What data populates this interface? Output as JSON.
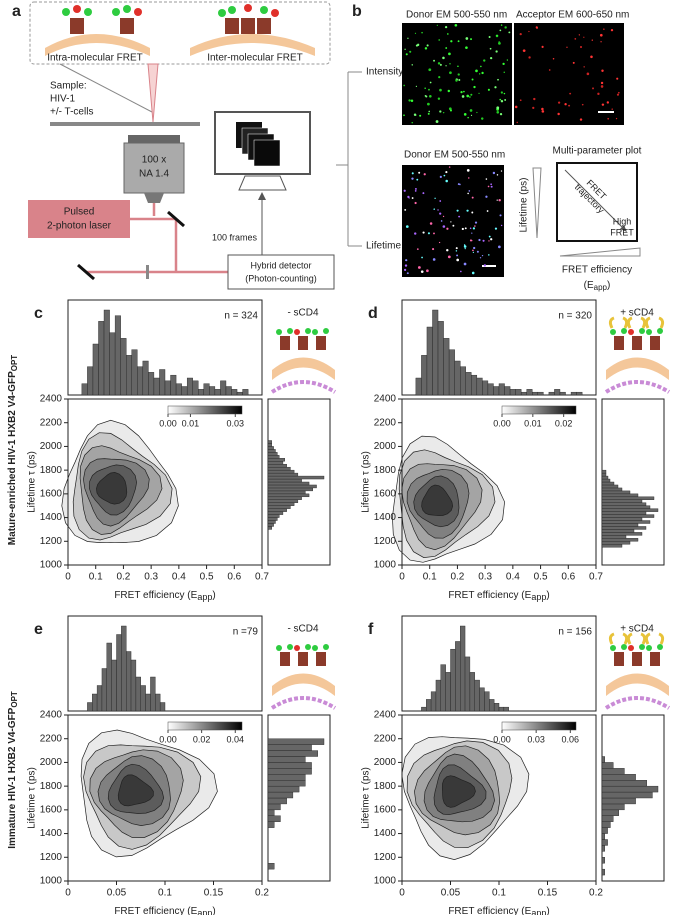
{
  "panel_a": {
    "letter": "a",
    "intra": "Intra-molecular FRET",
    "inter": "Inter-molecular FRET",
    "sample": [
      "Sample:",
      "HIV-1",
      "+/- T-cells"
    ],
    "objective": [
      "100 x",
      "NA 1.4"
    ],
    "laser": [
      "Pulsed",
      "2-photon laser"
    ],
    "frames": "100 frames",
    "detector": [
      "Hybrid detector",
      "(Photon-counting)"
    ]
  },
  "panel_b": {
    "letter": "b",
    "donor_top": "Donor EM 500-550 nm",
    "acceptor": "Acceptor EM 600-650 nm",
    "intensity": "Intensity",
    "lifetime": "Lifetime",
    "donor_bottom": "Donor EM 500-550 nm",
    "plot_title": "Multi-parameter plot",
    "plot_ylabel": "Lifetime (ps)",
    "trajectory": [
      "FRET",
      "trajectory"
    ],
    "high": [
      "High",
      "FRET"
    ],
    "plot_xlabel": {
      "line1": "FRET efficiency",
      "text": "(E",
      "sub": "app",
      "tail": ")"
    }
  },
  "row_labels": [
    {
      "text": "Mature-enriched HIV-1 HXB2 V4-GFP",
      "sub": "OPT"
    },
    {
      "text": "Immature HIV-1 HXB2 V4-GFP",
      "sub": "OPT"
    }
  ],
  "chart_data": [
    {
      "type": "contour",
      "letter": "c",
      "n_label": "n = 324",
      "condition": "- sCD4",
      "xlabel": {
        "text": "FRET efficiency (E",
        "sub": "app",
        "tail": ")"
      },
      "ylabel": "Lifetime τ (ps)",
      "xlim": [
        0,
        0.7
      ],
      "xticks": [
        0,
        0.1,
        0.2,
        0.3,
        0.4,
        0.5,
        0.6,
        0.7
      ],
      "ylim": [
        1000,
        2400
      ],
      "yticks": [
        1000,
        1200,
        1400,
        1600,
        1800,
        2000,
        2200,
        2400
      ],
      "clim": [
        0,
        0.033
      ],
      "colorbar_ticks": [
        {
          "value": 0,
          "label": "0.00"
        },
        {
          "value": 0.01,
          "label": "0.01"
        },
        {
          "value": 0.03,
          "label": "0.03"
        }
      ],
      "top_histogram": {
        "bins": [
          0.05,
          0.07,
          0.09,
          0.11,
          0.13,
          0.15,
          0.17,
          0.19,
          0.21,
          0.23,
          0.25,
          0.27,
          0.29,
          0.31,
          0.33,
          0.35,
          0.37,
          0.39,
          0.41,
          0.43,
          0.45,
          0.47,
          0.49,
          0.51,
          0.53,
          0.55,
          0.57,
          0.59,
          0.61,
          0.63,
          0.65
        ],
        "counts": [
          4,
          10,
          18,
          26,
          30,
          22,
          28,
          20,
          14,
          16,
          10,
          12,
          8,
          6,
          9,
          5,
          7,
          4,
          3,
          6,
          5,
          2,
          4,
          3,
          2,
          5,
          3,
          2,
          1,
          2
        ]
      },
      "right_histogram": {
        "bins": [
          1300,
          1325,
          1350,
          1375,
          1400,
          1425,
          1450,
          1475,
          1500,
          1525,
          1550,
          1575,
          1600,
          1625,
          1650,
          1675,
          1700,
          1725,
          1750,
          1775,
          1800,
          1825,
          1850,
          1875,
          1900,
          1925,
          1950,
          1975,
          2000,
          2025,
          2050
        ],
        "counts": [
          2,
          3,
          4,
          5,
          6,
          8,
          10,
          12,
          14,
          16,
          18,
          22,
          20,
          24,
          26,
          22,
          18,
          30,
          16,
          14,
          12,
          10,
          8,
          9,
          6,
          5,
          4,
          3,
          2,
          2
        ]
      }
    },
    {
      "type": "contour",
      "letter": "d",
      "n_label": "n = 320",
      "condition": "+ sCD4",
      "xlabel": {
        "text": "FRET efficiency (E",
        "sub": "app",
        "tail": ")"
      },
      "ylabel": "Lifetime τ (ps)",
      "xlim": [
        0,
        0.7
      ],
      "xticks": [
        0,
        0.1,
        0.2,
        0.3,
        0.4,
        0.5,
        0.6,
        0.7
      ],
      "ylim": [
        1000,
        2400
      ],
      "yticks": [
        1000,
        1200,
        1400,
        1600,
        1800,
        2000,
        2200,
        2400
      ],
      "clim": [
        0,
        0.024
      ],
      "colorbar_ticks": [
        {
          "value": 0,
          "label": "0.00"
        },
        {
          "value": 0.01,
          "label": "0.01"
        },
        {
          "value": 0.02,
          "label": "0.02"
        }
      ],
      "top_histogram": {
        "bins": [
          0.05,
          0.07,
          0.09,
          0.11,
          0.13,
          0.15,
          0.17,
          0.19,
          0.21,
          0.23,
          0.25,
          0.27,
          0.29,
          0.31,
          0.33,
          0.35,
          0.37,
          0.39,
          0.41,
          0.43,
          0.45,
          0.47,
          0.49,
          0.51,
          0.53,
          0.55,
          0.57,
          0.59,
          0.61,
          0.63,
          0.65
        ],
        "counts": [
          6,
          14,
          24,
          30,
          26,
          20,
          16,
          12,
          10,
          8,
          7,
          6,
          5,
          4,
          3,
          4,
          3,
          2,
          2,
          1,
          2,
          1,
          1,
          0,
          1,
          2,
          1,
          0,
          1,
          1
        ]
      },
      "right_histogram": {
        "bins": [
          1150,
          1175,
          1200,
          1225,
          1250,
          1275,
          1300,
          1325,
          1350,
          1375,
          1400,
          1425,
          1450,
          1475,
          1500,
          1525,
          1550,
          1575,
          1600,
          1625,
          1650,
          1675,
          1700,
          1725,
          1750,
          1775,
          1800
        ],
        "counts": [
          10,
          14,
          18,
          12,
          20,
          16,
          22,
          18,
          24,
          20,
          26,
          22,
          28,
          24,
          22,
          20,
          26,
          18,
          14,
          10,
          8,
          6,
          4,
          3,
          2,
          2
        ]
      }
    },
    {
      "type": "contour",
      "letter": "e",
      "n_label": "n =79",
      "condition": "- sCD4",
      "xlabel": {
        "text": "FRET efficiency (E",
        "sub": "app",
        "tail": ")"
      },
      "ylabel": "Lifetime τ (ps)",
      "xlim": [
        0,
        0.2
      ],
      "xticks": [
        0,
        0.05,
        0.1,
        0.15,
        0.2
      ],
      "ylim": [
        1000,
        2400
      ],
      "yticks": [
        1000,
        1200,
        1400,
        1600,
        1800,
        2000,
        2200,
        2400
      ],
      "clim": [
        0,
        0.044
      ],
      "colorbar_ticks": [
        {
          "value": 0,
          "label": "0.00"
        },
        {
          "value": 0.02,
          "label": "0.02"
        },
        {
          "value": 0.04,
          "label": "0.04"
        }
      ],
      "top_histogram": {
        "bins": [
          0.02,
          0.025,
          0.03,
          0.035,
          0.04,
          0.045,
          0.05,
          0.055,
          0.06,
          0.065,
          0.07,
          0.075,
          0.08,
          0.085,
          0.09,
          0.095,
          0.1
        ],
        "counts": [
          1,
          2,
          3,
          5,
          8,
          6,
          9,
          10,
          7,
          6,
          4,
          3,
          2,
          4,
          2,
          1
        ]
      },
      "right_histogram": {
        "bins": [
          1050,
          1100,
          1150,
          1200,
          1250,
          1300,
          1350,
          1400,
          1450,
          1500,
          1550,
          1600,
          1650,
          1700,
          1750,
          1800,
          1850,
          1900,
          1950,
          2000,
          2050,
          2100,
          2150,
          2200
        ],
        "counts": [
          0,
          1,
          0,
          0,
          0,
          0,
          0,
          0,
          1,
          2,
          1,
          2,
          3,
          4,
          5,
          6,
          6,
          7,
          7,
          6,
          8,
          7,
          9
        ]
      }
    },
    {
      "type": "contour",
      "letter": "f",
      "n_label": "n = 156",
      "condition": "+ sCD4",
      "xlabel": {
        "text": "FRET efficiency (E",
        "sub": "app",
        "tail": ")"
      },
      "ylabel": "Lifetime τ (ps)",
      "xlim": [
        0,
        0.2
      ],
      "xticks": [
        0,
        0.05,
        0.1,
        0.15,
        0.2
      ],
      "ylim": [
        1000,
        2400
      ],
      "yticks": [
        1000,
        1200,
        1400,
        1600,
        1800,
        2000,
        2200,
        2400
      ],
      "clim": [
        0,
        0.065
      ],
      "colorbar_ticks": [
        {
          "value": 0,
          "label": "0.00"
        },
        {
          "value": 0.03,
          "label": "0.03"
        },
        {
          "value": 0.06,
          "label": "0.06"
        }
      ],
      "top_histogram": {
        "bins": [
          0.02,
          0.025,
          0.03,
          0.035,
          0.04,
          0.045,
          0.05,
          0.055,
          0.06,
          0.065,
          0.07,
          0.075,
          0.08,
          0.085,
          0.09,
          0.095,
          0.1,
          0.105,
          0.11
        ],
        "counts": [
          1,
          3,
          5,
          8,
          12,
          10,
          16,
          18,
          22,
          14,
          10,
          8,
          6,
          5,
          3,
          2,
          1,
          1
        ]
      },
      "right_histogram": {
        "bins": [
          1050,
          1100,
          1150,
          1200,
          1250,
          1300,
          1350,
          1400,
          1450,
          1500,
          1550,
          1600,
          1650,
          1700,
          1750,
          1800,
          1850,
          1900,
          1950,
          2000,
          2050
        ],
        "counts": [
          1,
          0,
          1,
          0,
          1,
          2,
          1,
          2,
          3,
          4,
          6,
          8,
          12,
          18,
          20,
          16,
          12,
          8,
          4,
          1
        ]
      }
    }
  ]
}
